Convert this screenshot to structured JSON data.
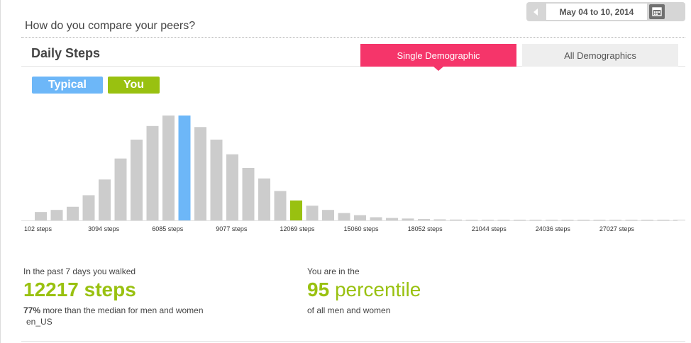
{
  "header": {
    "date_range": "May 04 to 10, 2014",
    "page_title": "How do you compare your peers?"
  },
  "section": {
    "title": "Daily Steps",
    "tabs": [
      {
        "label": "Single Demographic",
        "active": true
      },
      {
        "label": "All Demographics",
        "active": false
      }
    ]
  },
  "legend": {
    "typical": "Typical",
    "you": "You"
  },
  "colors": {
    "typical": "#6db7f8",
    "you": "#99c110",
    "bar": "#cccccc",
    "accent_tab": "#f5356a"
  },
  "icons": {
    "prev": "triangle-left-icon",
    "calendar": "calendar-icon"
  },
  "chart_data": {
    "type": "bar",
    "title": "",
    "xlabel": "",
    "ylabel": "",
    "ylim": [
      0,
      100
    ],
    "tick_labels": [
      "102 steps",
      "3094 steps",
      "6085 steps",
      "9077 steps",
      "12069 steps",
      "15060 steps",
      "18052 steps",
      "21044 steps",
      "24036 steps",
      "27027 steps"
    ],
    "values": [
      8,
      10,
      13,
      24,
      39,
      59,
      77,
      90,
      100,
      100,
      89,
      77,
      63,
      50,
      40,
      28,
      19,
      14,
      10,
      7,
      5,
      3,
      2.3,
      1.8,
      1.3,
      1.0,
      0.8,
      0.6,
      0.5,
      0.5,
      0.4,
      0.4,
      0.3,
      0.3,
      0.3,
      0.3,
      0.2,
      0.2,
      0.2,
      0.2,
      0.2
    ],
    "typical_index": 9,
    "you_index": 16
  },
  "stats": {
    "walked": {
      "label": "In the past 7 days you walked",
      "value": "12217",
      "unit": "steps",
      "percent": "77%",
      "sub": "more than the median for men and women",
      "locale": "en_US"
    },
    "percentile": {
      "label": "You are in the",
      "value": "95",
      "unit": "percentile",
      "sub": "of all men and women"
    }
  }
}
